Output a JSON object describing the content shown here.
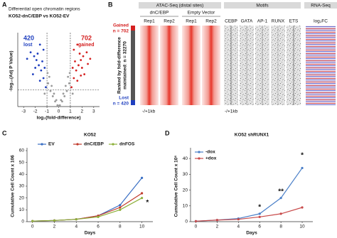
{
  "chart_data": [
    {
      "type": "scatter",
      "label": "A",
      "title": "Differential open chromatin regions",
      "subtitle": "KO52-dnC/EBP vs KO52-EV",
      "x_label": "log₂(fold-difference)",
      "y_label": "-log₁₀(Adj P Value)",
      "xlim": [
        -3.5,
        3.5
      ],
      "xticks": [
        -3,
        -2,
        -1,
        0,
        1,
        2,
        3
      ],
      "ylim": [
        0,
        5.5
      ],
      "x_thresholds": [
        -1,
        1
      ],
      "y_threshold": 1.3,
      "annotations": [
        "420",
        "lost",
        "702",
        "gained"
      ],
      "series": [
        {
          "color": "#9a9a9a",
          "x": [
            -0.9,
            -0.7,
            -0.5,
            -0.3,
            -0.1,
            0.1,
            0.3,
            0.5,
            0.7,
            0.9,
            -0.8,
            -0.6,
            -0.4,
            -0.2,
            0,
            0.2,
            0.4,
            0.6,
            0.8,
            -1.2,
            1.2,
            -0.95,
            0.95
          ],
          "values": [
            1.8,
            1.2,
            0.8,
            0.4,
            0.1,
            0.1,
            0.4,
            0.8,
            1.2,
            1.8,
            2.3,
            1.6,
            1.0,
            0.5,
            0.05,
            0.5,
            1.0,
            1.6,
            2.3,
            1.0,
            1.0,
            2.6,
            2.6
          ]
        },
        {
          "color": "#1f3fbf",
          "x": [
            -1.1,
            -1.3,
            -1.5,
            -1.7,
            -1.9,
            -2.1,
            -2.4,
            -1.2,
            -1.4,
            -1.6,
            -1.8,
            -2.0,
            -2.2,
            -2.7,
            -1.3,
            -1.6
          ],
          "values": [
            1.5,
            2.2,
            2.8,
            3.2,
            3.6,
            3.9,
            4.2,
            3.0,
            3.5,
            2.0,
            4.1,
            3.0,
            2.5,
            3.7,
            4.4,
            4.8
          ]
        },
        {
          "color": "#d42020",
          "x": [
            1.1,
            1.3,
            1.5,
            1.7,
            1.9,
            2.1,
            2.4,
            1.2,
            1.4,
            1.6,
            1.8,
            2.0,
            2.2,
            2.7,
            1.3,
            1.6,
            2.5,
            1.9
          ],
          "values": [
            1.5,
            2.2,
            2.8,
            3.2,
            3.6,
            3.9,
            4.2,
            3.0,
            3.5,
            2.0,
            4.1,
            3.0,
            2.5,
            3.7,
            4.4,
            4.8,
            3.3,
            2.4
          ]
        }
      ]
    },
    {
      "type": "line",
      "label": "C",
      "title": "KO52",
      "x_label": "Days",
      "y_label": "Cumulative Cell Count x 106",
      "legend": "top",
      "x": [
        0,
        2,
        4,
        6,
        8,
        10
      ],
      "xlim": [
        -0.5,
        11
      ],
      "xticks": [
        0,
        2,
        4,
        6,
        8,
        10
      ],
      "ylim": [
        0,
        60
      ],
      "yticks": [
        0,
        10,
        20,
        30,
        40,
        50,
        60
      ],
      "series": [
        {
          "name": "EV",
          "color": "#3a6fc4",
          "values": [
            0.5,
            1,
            2,
            5,
            14,
            37
          ]
        },
        {
          "name": "dnC/EBP",
          "color": "#c0392b",
          "values": [
            0.5,
            1,
            2,
            5,
            12,
            24
          ]
        },
        {
          "name": "dnFOS",
          "color": "#8db03a",
          "values": [
            0.5,
            1,
            2,
            4,
            10,
            20
          ]
        }
      ],
      "annotations": [
        {
          "text": "*",
          "x": 10.5,
          "y": 16
        }
      ]
    },
    {
      "type": "line",
      "label": "D",
      "title": "KO52 shRUNX1",
      "x_label": "Days",
      "y_label": "Cumulative Cell Count x 10⁶",
      "legend": "upper left",
      "x": [
        0,
        2,
        4,
        6,
        8,
        10
      ],
      "xlim": [
        -0.5,
        11
      ],
      "xticks": [
        0,
        2,
        4,
        6,
        8,
        10
      ],
      "ylim": [
        0,
        45
      ],
      "yticks": [
        0,
        10,
        20,
        30,
        40
      ],
      "series": [
        {
          "name": "-dox",
          "color": "#4a7fc8",
          "values": [
            0.3,
            1,
            2,
            5,
            15,
            34
          ]
        },
        {
          "name": "+dox",
          "color": "#c84a4a",
          "values": [
            0.3,
            1,
            1.5,
            3,
            5,
            9
          ]
        }
      ],
      "annotations": [
        {
          "text": "*",
          "x": 6,
          "y": 9
        },
        {
          "text": "**",
          "x": 8,
          "y": 19
        },
        {
          "text": "*",
          "x": 10,
          "y": 42
        }
      ]
    }
  ],
  "heatmap_panel": {
    "label": "B",
    "sections": [
      "ATAC-Seq (distal sites)",
      "Motifs",
      "RNA-Seq"
    ],
    "groups": [
      "dnC/EBP",
      "Empty Vector"
    ],
    "replicates": [
      "Rep1",
      "Rep2",
      "Rep1",
      "Rep2"
    ],
    "motifs": [
      "CEBP",
      "GATA",
      "AP-1",
      "RUNX",
      "ETS"
    ],
    "rna_label": "log₂FC",
    "gained": [
      "Gained",
      "n = 702"
    ],
    "lost": [
      "Lost",
      "n = 420"
    ],
    "ranked": [
      "Ranked by fold-difference",
      "maintained: n = 32270"
    ],
    "window_labels": [
      "-/+1kb",
      "-/+1kb"
    ]
  }
}
